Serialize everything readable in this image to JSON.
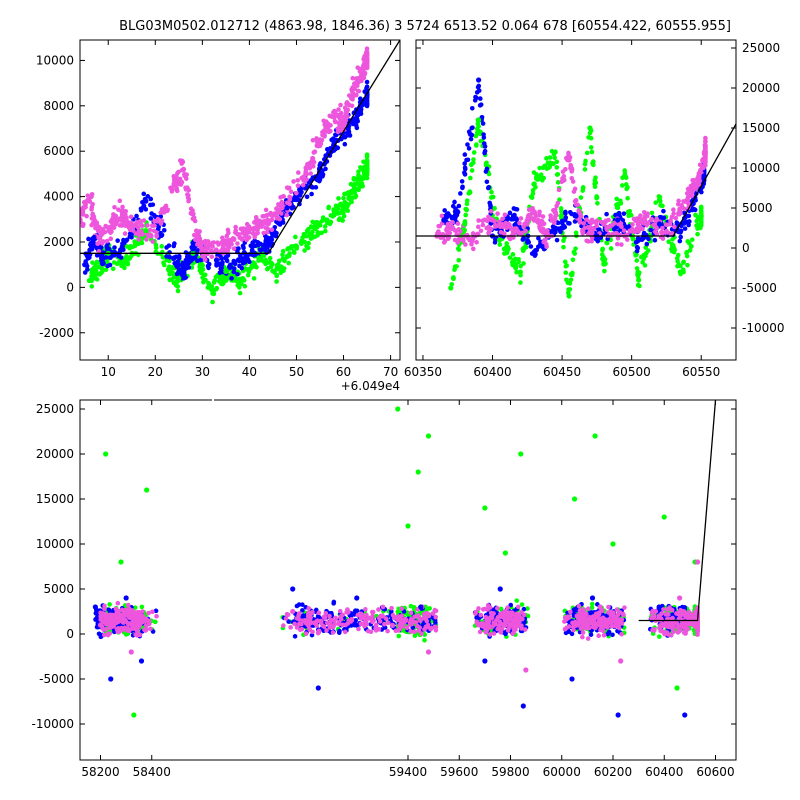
{
  "figure": {
    "title": "BLG03M0502.012712 (4863.98, 1846.36)   3 5724 6513.52 0.064 678 [60554.422, 60555.955]"
  },
  "colors": {
    "green": "#00ff00",
    "blue": "#0000ff",
    "pink": "#ee55dd",
    "model": "#000000"
  },
  "chart_data": [
    {
      "panel": "top-left",
      "type": "scatter",
      "title": "",
      "xlabel": "",
      "ylabel": "",
      "x_offset_label": "+6.049e4",
      "xlim": [
        4,
        72
      ],
      "ylim": [
        -3200,
        10900
      ],
      "xticks": [
        10,
        20,
        30,
        40,
        50,
        60,
        70
      ],
      "yticks": [
        -2000,
        0,
        2000,
        4000,
        6000,
        8000,
        10000
      ],
      "ytick_side": "left",
      "grid": false,
      "series": [
        {
          "color": "green",
          "points": [
            [
              6,
              300
            ],
            [
              8,
              900
            ],
            [
              10,
              1500
            ],
            [
              14,
              1200
            ],
            [
              18,
              2500
            ],
            [
              23,
              900
            ],
            [
              25,
              400
            ],
            [
              28,
              1500
            ],
            [
              32,
              -100
            ],
            [
              35,
              700
            ],
            [
              38,
              300
            ],
            [
              42,
              1300
            ],
            [
              46,
              900
            ],
            [
              50,
              1800
            ],
            [
              54,
              2600
            ],
            [
              58,
              3200
            ],
            [
              60,
              3500
            ],
            [
              62,
              4200
            ],
            [
              64,
              4800
            ],
            [
              65,
              5200
            ]
          ]
        },
        {
          "color": "blue",
          "points": [
            [
              5,
              1000
            ],
            [
              7,
              2200
            ],
            [
              9,
              1300
            ],
            [
              13,
              1800
            ],
            [
              18,
              3800
            ],
            [
              24,
              1300
            ],
            [
              26,
              700
            ],
            [
              28,
              1700
            ],
            [
              33,
              1200
            ],
            [
              36,
              900
            ],
            [
              39,
              1500
            ],
            [
              43,
              1800
            ],
            [
              45,
              2300
            ],
            [
              48,
              3500
            ],
            [
              51,
              4200
            ],
            [
              55,
              5000
            ],
            [
              58,
              6400
            ],
            [
              61,
              7000
            ],
            [
              63,
              7600
            ],
            [
              65,
              8500
            ]
          ]
        },
        {
          "color": "pink",
          "points": [
            [
              4,
              3000
            ],
            [
              6,
              3800
            ],
            [
              8,
              2200
            ],
            [
              11,
              2800
            ],
            [
              13,
              3200
            ],
            [
              15,
              2600
            ],
            [
              19,
              2300
            ],
            [
              24,
              4500
            ],
            [
              26,
              5200
            ],
            [
              29,
              2200
            ],
            [
              31,
              1500
            ],
            [
              35,
              2000
            ],
            [
              38,
              2200
            ],
            [
              41,
              2600
            ],
            [
              44,
              2800
            ],
            [
              47,
              3600
            ],
            [
              52,
              5000
            ],
            [
              55,
              6500
            ],
            [
              58,
              7500
            ],
            [
              60,
              7200
            ],
            [
              62,
              8800
            ],
            [
              64,
              9500
            ],
            [
              65,
              10000
            ]
          ]
        }
      ],
      "model_line": [
        [
          4,
          1500
        ],
        [
          44,
          1500
        ],
        [
          72,
          10900
        ]
      ]
    },
    {
      "panel": "top-right",
      "type": "scatter",
      "title": "",
      "xlabel": "",
      "ylabel": "",
      "xlim": [
        60345,
        60575
      ],
      "ylim": [
        -14000,
        26000
      ],
      "xticks": [
        60350,
        60400,
        60450,
        60500,
        60550
      ],
      "yticks": [
        -10000,
        -5000,
        0,
        5000,
        10000,
        15000,
        20000,
        25000
      ],
      "ytick_side": "right",
      "grid": false,
      "series": [
        {
          "color": "green",
          "points": [
            [
              60370,
              -5000
            ],
            [
              60380,
              3000
            ],
            [
              60390,
              16000
            ],
            [
              60405,
              1000
            ],
            [
              60420,
              -3000
            ],
            [
              60430,
              8000
            ],
            [
              60445,
              12000
            ],
            [
              60455,
              -6000
            ],
            [
              60470,
              15000
            ],
            [
              60480,
              -2000
            ],
            [
              60495,
              9000
            ],
            [
              60505,
              -4000
            ],
            [
              60520,
              6000
            ],
            [
              60535,
              -3000
            ],
            [
              60550,
              4000
            ]
          ]
        },
        {
          "color": "blue",
          "points": [
            [
              60365,
              3500
            ],
            [
              60375,
              4500
            ],
            [
              60390,
              21000
            ],
            [
              60400,
              1500
            ],
            [
              60415,
              4000
            ],
            [
              60430,
              -500
            ],
            [
              60445,
              2500
            ],
            [
              60460,
              4000
            ],
            [
              60475,
              1500
            ],
            [
              60490,
              3500
            ],
            [
              60505,
              1000
            ],
            [
              60520,
              3000
            ],
            [
              60535,
              2000
            ],
            [
              60545,
              6000
            ],
            [
              60552,
              9000
            ]
          ]
        },
        {
          "color": "pink",
          "points": [
            [
              60360,
              1500
            ],
            [
              60370,
              2500
            ],
            [
              60385,
              1000
            ],
            [
              60400,
              3500
            ],
            [
              60415,
              2000
            ],
            [
              60430,
              4500
            ],
            [
              60440,
              1500
            ],
            [
              60455,
              11000
            ],
            [
              60465,
              2000
            ],
            [
              60480,
              3000
            ],
            [
              60495,
              1500
            ],
            [
              60510,
              4000
            ],
            [
              60525,
              2000
            ],
            [
              60540,
              6000
            ],
            [
              60548,
              8500
            ],
            [
              60553,
              12000
            ]
          ]
        }
      ],
      "model_line": [
        [
          60345,
          1500
        ],
        [
          60530,
          1500
        ],
        [
          60575,
          15500
        ]
      ]
    },
    {
      "panel": "bottom",
      "type": "scatter",
      "title": "",
      "xlabel": "",
      "ylabel": "",
      "xlim": [
        58120,
        60680
      ],
      "ylim": [
        -14000,
        26000
      ],
      "xticks": [
        58200,
        58400,
        59400,
        59600,
        59800,
        60000,
        60200,
        60400,
        60600
      ],
      "yticks": [
        -10000,
        -5000,
        0,
        5000,
        10000,
        15000,
        20000,
        25000
      ],
      "ytick_side": "left",
      "grid": false,
      "seasons": [
        [
          58160,
          58420
        ],
        [
          58910,
          59510
        ],
        [
          59660,
          59870
        ],
        [
          60010,
          60245
        ],
        [
          60345,
          60555
        ]
      ],
      "series": [
        {
          "color": "green",
          "points": [
            [
              58220,
              20000
            ],
            [
              58280,
              8000
            ],
            [
              58330,
              -9000
            ],
            [
              58380,
              16000
            ],
            [
              59360,
              25000
            ],
            [
              59400,
              12000
            ],
            [
              59440,
              18000
            ],
            [
              59480,
              22000
            ],
            [
              59700,
              14000
            ],
            [
              59780,
              9000
            ],
            [
              59840,
              20000
            ],
            [
              60050,
              15000
            ],
            [
              60130,
              22000
            ],
            [
              60200,
              10000
            ],
            [
              60400,
              13000
            ],
            [
              60450,
              -6000
            ],
            [
              60520,
              8000
            ]
          ]
        },
        {
          "color": "blue",
          "points": [
            [
              58180,
              3000
            ],
            [
              58240,
              -5000
            ],
            [
              58300,
              4000
            ],
            [
              58360,
              -3000
            ],
            [
              58950,
              5000
            ],
            [
              59050,
              -6000
            ],
            [
              59200,
              4000
            ],
            [
              59450,
              3000
            ],
            [
              59700,
              -3000
            ],
            [
              59760,
              5000
            ],
            [
              59850,
              -8000
            ],
            [
              60040,
              -5000
            ],
            [
              60120,
              4000
            ],
            [
              60220,
              -9000
            ],
            [
              60380,
              3000
            ],
            [
              60480,
              -9000
            ]
          ]
        },
        {
          "color": "pink",
          "points": [
            [
              58200,
              1000
            ],
            [
              58260,
              2000
            ],
            [
              58320,
              -2000
            ],
            [
              58380,
              1500
            ],
            [
              58950,
              2500
            ],
            [
              59100,
              1500
            ],
            [
              59300,
              2000
            ],
            [
              59480,
              -2000
            ],
            [
              59680,
              1000
            ],
            [
              59780,
              2500
            ],
            [
              59860,
              -4000
            ],
            [
              60060,
              2000
            ],
            [
              60150,
              3000
            ],
            [
              60230,
              -3000
            ],
            [
              60380,
              2000
            ],
            [
              60460,
              4000
            ],
            [
              60530,
              8000
            ]
          ]
        }
      ],
      "model_line": [
        [
          60300,
          1500
        ],
        [
          60530,
          1500
        ],
        [
          60600,
          26000
        ]
      ]
    }
  ]
}
